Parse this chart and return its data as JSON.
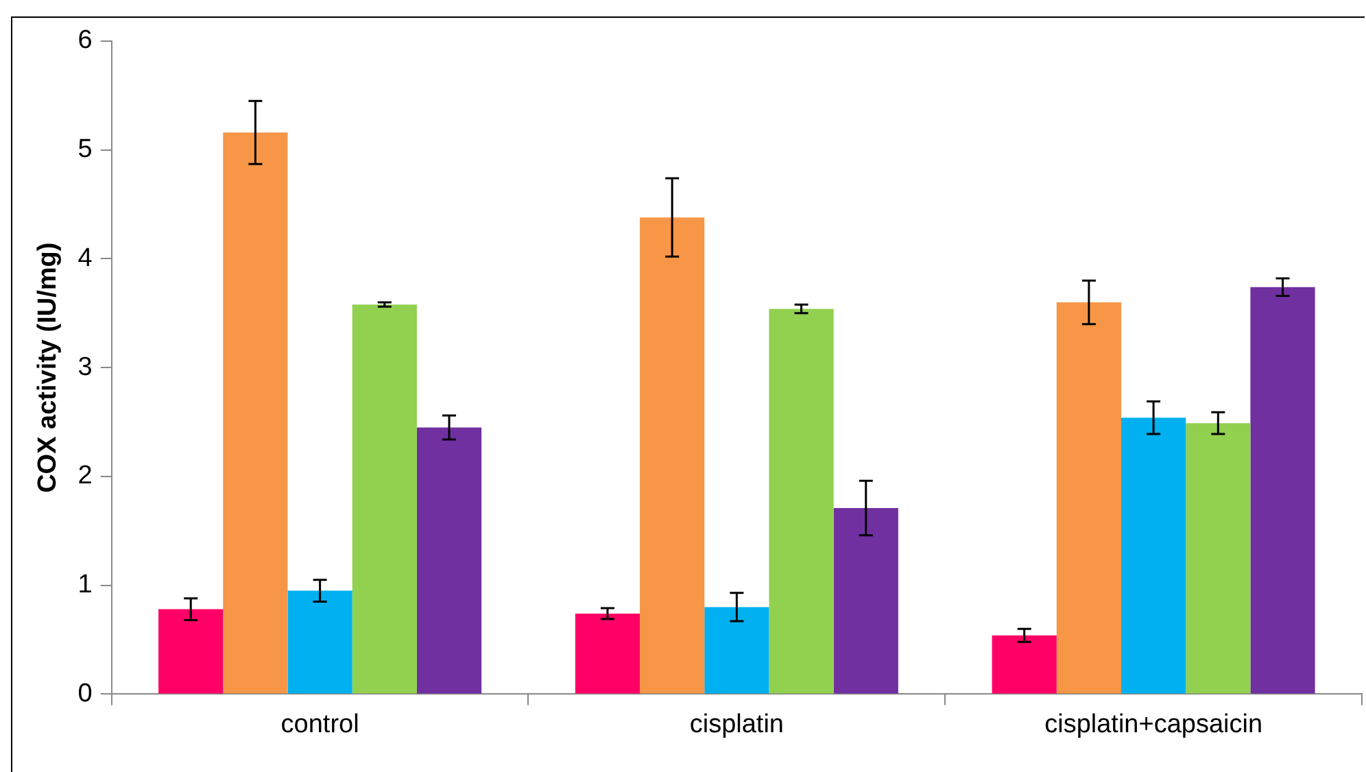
{
  "chart_data": {
    "type": "bar",
    "ylabel": "COX activity (IU/mg)",
    "categories": [
      "control",
      "cisplatin",
      "cisplatin+capsaicin"
    ],
    "series": [
      {
        "color": "#ff0066",
        "values": [
          0.78,
          0.74,
          0.54
        ],
        "errors": [
          0.1,
          0.05,
          0.06
        ]
      },
      {
        "color": "#f79646",
        "values": [
          5.16,
          4.38,
          3.6
        ],
        "errors": [
          0.29,
          0.36,
          0.2
        ]
      },
      {
        "color": "#00b0f0",
        "values": [
          0.95,
          0.8,
          2.54
        ],
        "errors": [
          0.1,
          0.13,
          0.15
        ]
      },
      {
        "color": "#92d050",
        "values": [
          3.58,
          3.54,
          2.49
        ],
        "errors": [
          0.02,
          0.04,
          0.1
        ]
      },
      {
        "color": "#7030a0",
        "values": [
          2.45,
          1.71,
          3.74
        ],
        "errors": [
          0.11,
          0.25,
          0.08
        ]
      }
    ],
    "ylim": [
      0,
      6
    ],
    "yticks": [
      0,
      1,
      2,
      3,
      4,
      5,
      6
    ],
    "grid": false,
    "legend": false
  }
}
